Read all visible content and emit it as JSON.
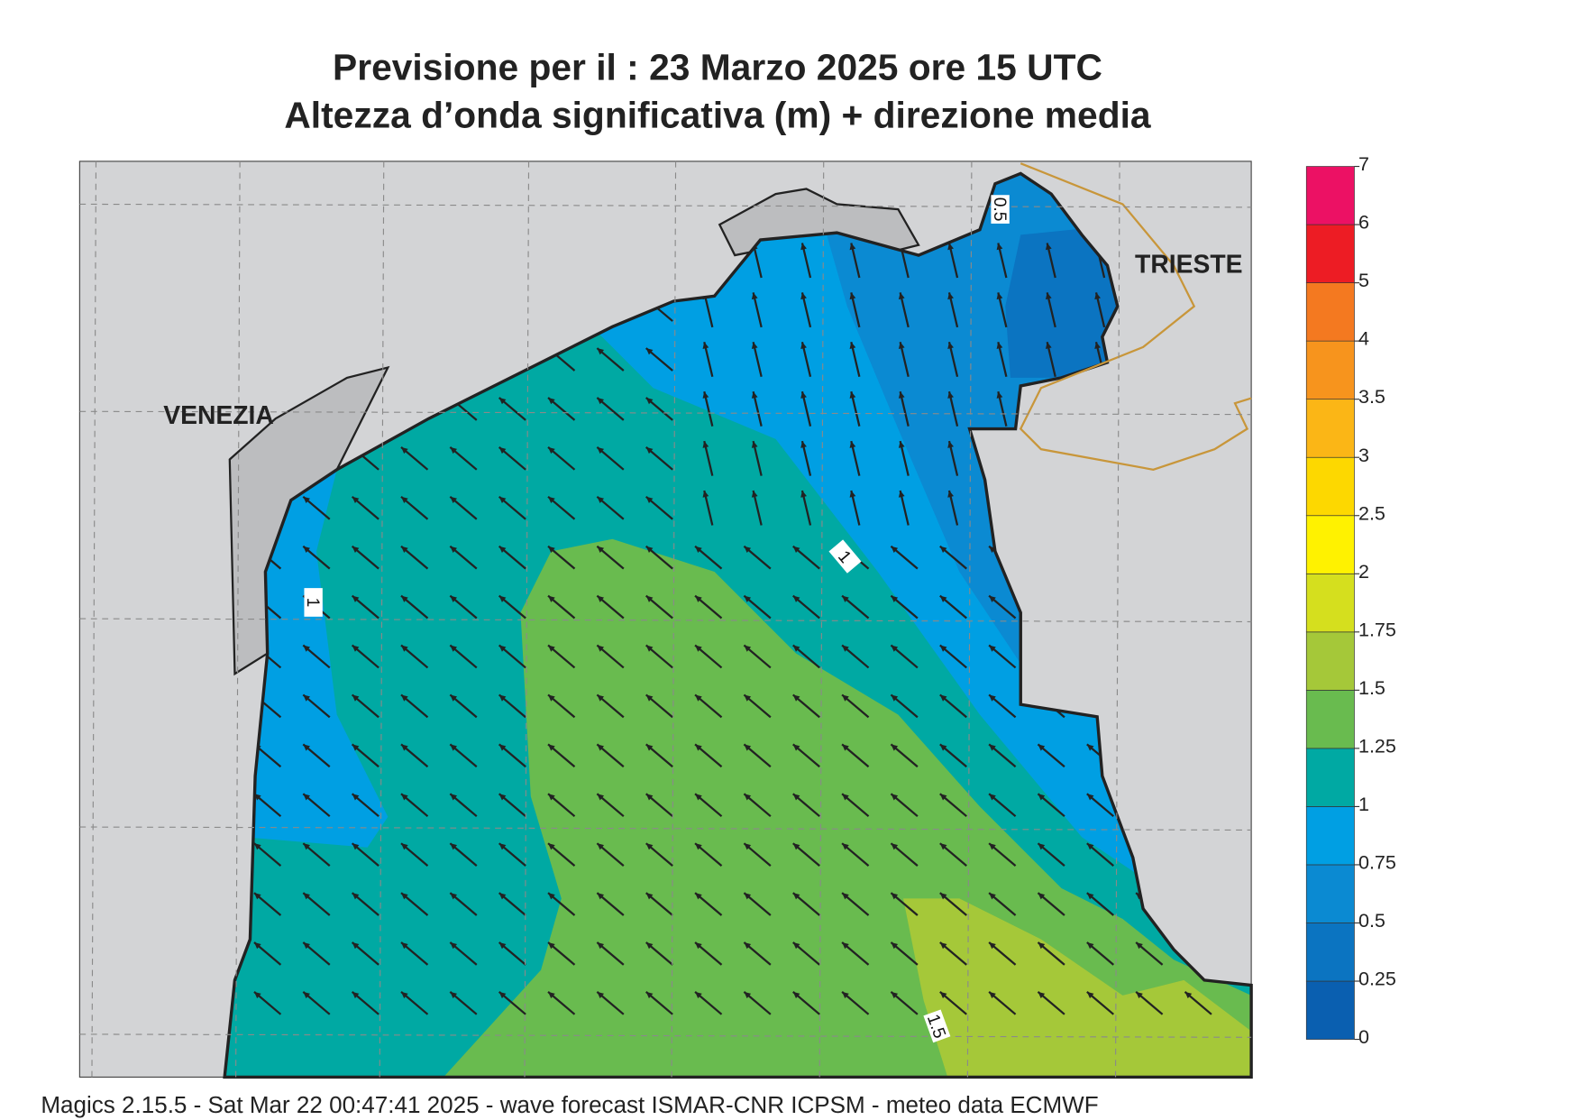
{
  "header": {
    "title": "Previsione per il  :  23   Marzo   2025   ore 15 UTC",
    "subtitle": "Altezza d’onda significativa (m) + direzione media"
  },
  "map": {
    "places": [
      "VENEZIA",
      "TRIESTE"
    ],
    "contour_labels": [
      "0.5",
      "1",
      "1",
      "1.5"
    ]
  },
  "colorbar": {
    "levels": [
      0,
      0.25,
      0.5,
      0.75,
      1,
      1.25,
      1.5,
      1.75,
      2,
      2.5,
      3,
      3.5,
      4,
      5,
      6,
      7
    ],
    "colors": [
      "#0a5fb0",
      "#0b74c1",
      "#0b8ad2",
      "#009fe3",
      "#00a9a3",
      "#69bb4f",
      "#a5c839",
      "#d5df1e",
      "#fff200",
      "#fdd800",
      "#fbb616",
      "#f7941d",
      "#f47920",
      "#ed1c24",
      "#ec1164"
    ]
  },
  "footer": "Magics 2.15.5 - Sat Mar 22 00:47:41 2025 - wave forecast  ISMAR-CNR  ICPSM - meteo data   ECMWF"
}
